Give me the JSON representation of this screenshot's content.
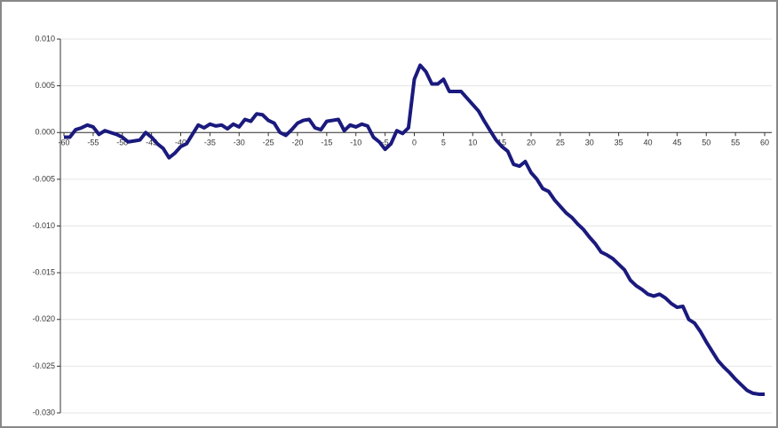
{
  "chart_data": {
    "type": "line",
    "x": [
      -60,
      -59,
      -58,
      -57,
      -56,
      -55,
      -54,
      -53,
      -52,
      -51,
      -50,
      -49,
      -48,
      -47,
      -46,
      -45,
      -44,
      -43,
      -42,
      -41,
      -40,
      -39,
      -38,
      -37,
      -36,
      -35,
      -34,
      -33,
      -32,
      -31,
      -30,
      -29,
      -28,
      -27,
      -26,
      -25,
      -24,
      -23,
      -22,
      -21,
      -20,
      -19,
      -18,
      -17,
      -16,
      -15,
      -14,
      -13,
      -12,
      -11,
      -10,
      -9,
      -8,
      -7,
      -6,
      -5,
      -4,
      -3,
      -2,
      -1,
      0,
      1,
      2,
      3,
      4,
      5,
      6,
      7,
      8,
      9,
      10,
      11,
      12,
      13,
      14,
      15,
      16,
      17,
      18,
      19,
      20,
      21,
      22,
      23,
      24,
      25,
      26,
      27,
      28,
      29,
      30,
      31,
      32,
      33,
      34,
      35,
      36,
      37,
      38,
      39,
      40,
      41,
      42,
      43,
      44,
      45,
      46,
      47,
      48,
      49,
      50,
      51,
      52,
      53,
      54,
      55,
      56,
      57,
      58,
      59,
      60
    ],
    "series": [
      {
        "color": "#1a1a7e",
        "values": [
          -0.0005,
          -0.0005,
          0.0003,
          0.0005,
          0.0008,
          0.0006,
          -0.0002,
          0.0002,
          0.0,
          -0.0002,
          -0.0005,
          -0.001,
          -0.0009,
          -0.0008,
          0.0,
          -0.0005,
          -0.0012,
          -0.0017,
          -0.0027,
          -0.0022,
          -0.0015,
          -0.0012,
          -0.0002,
          0.0008,
          0.0005,
          0.0009,
          0.0007,
          0.0008,
          0.0004,
          0.0009,
          0.0006,
          0.0014,
          0.0012,
          0.002,
          0.0019,
          0.0013,
          0.001,
          0.0,
          -0.0003,
          0.0003,
          0.001,
          0.0013,
          0.0014,
          0.0005,
          0.0003,
          0.0012,
          0.0013,
          0.0014,
          0.0002,
          0.0008,
          0.0006,
          0.0009,
          0.0007,
          -0.0005,
          -0.001,
          -0.0018,
          -0.0012,
          0.0002,
          -0.0001,
          0.0005,
          0.0057,
          0.0072,
          0.0065,
          0.0052,
          0.0052,
          0.0057,
          0.0044,
          0.0044,
          0.0044,
          0.0037,
          0.003,
          0.0023,
          0.0012,
          0.0002,
          -0.0008,
          -0.0015,
          -0.002,
          -0.0034,
          -0.0036,
          -0.0031,
          -0.0043,
          -0.005,
          -0.006,
          -0.0063,
          -0.0072,
          -0.0079,
          -0.0086,
          -0.0091,
          -0.0098,
          -0.0104,
          -0.0112,
          -0.0119,
          -0.0128,
          -0.0131,
          -0.0135,
          -0.0141,
          -0.0147,
          -0.0158,
          -0.0164,
          -0.0168,
          -0.0173,
          -0.0175,
          -0.0173,
          -0.0177,
          -0.0183,
          -0.0187,
          -0.0186,
          -0.02,
          -0.0204,
          -0.0213,
          -0.0224,
          -0.0234,
          -0.0244,
          -0.0251,
          -0.0257,
          -0.0264,
          -0.027,
          -0.0276,
          -0.0279,
          -0.028,
          -0.028
        ]
      }
    ],
    "xlim": [
      -60,
      60
    ],
    "xticks": [
      -60,
      -55,
      -50,
      -45,
      -40,
      -35,
      -30,
      -25,
      -20,
      -15,
      -10,
      -5,
      0,
      5,
      10,
      15,
      20,
      25,
      30,
      35,
      40,
      45,
      50,
      55,
      60
    ],
    "ylim": [
      -0.03,
      0.01
    ],
    "yticks": [
      {
        "value": 0.01,
        "label": "0.010"
      },
      {
        "value": 0.005,
        "label": "0.005"
      },
      {
        "value": 0,
        "label": "0.000"
      },
      {
        "value": -0.005,
        "label": "-0.005"
      },
      {
        "value": -0.01,
        "label": "-0.010"
      },
      {
        "value": -0.015,
        "label": "-0.015"
      },
      {
        "value": -0.02,
        "label": "-0.020"
      },
      {
        "value": -0.025,
        "label": "-0.025"
      },
      {
        "value": -0.03,
        "label": "-0.030"
      }
    ],
    "grid": true
  }
}
